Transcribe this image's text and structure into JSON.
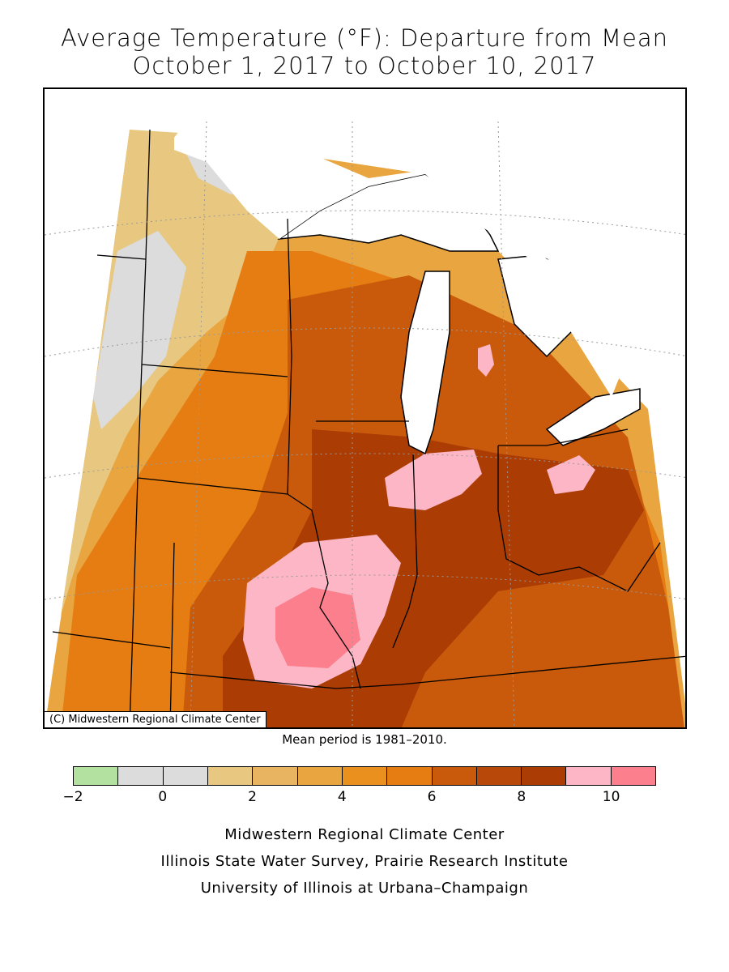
{
  "title": {
    "line1": "Average Temperature (°F): Departure from Mean",
    "line2": "October 1, 2017 to October 10, 2017"
  },
  "map": {
    "credit": "(C) Midwestern Regional Climate Center",
    "mean_note": "Mean period is 1981–2010.",
    "colors": {
      "bin_2_4": "#e9a540",
      "bin_4_6": "#e57d12",
      "bin_6_8": "#c95a0b",
      "bin_8_9": "#aa3c04",
      "bin_9_10": "#fdb6c6",
      "bin_10_11": "#fb7f8c",
      "bin_1_2": "#e8c880",
      "bin_neg": "#dcdcdc",
      "lake": "#ffffff"
    }
  },
  "legend": {
    "colors": [
      "#b2e1a0",
      "#dcdcdc",
      "#dcdcdc",
      "#e8c880",
      "#e9b461",
      "#e9a540",
      "#ea901f",
      "#e57d12",
      "#c95a0b",
      "#b8480a",
      "#aa3c04",
      "#fdb6c6",
      "#fb7f8c"
    ],
    "tick_labels": [
      "−2",
      "0",
      "2",
      "4",
      "6",
      "8",
      "10"
    ],
    "tick_values": [
      -2,
      0,
      2,
      4,
      6,
      8,
      10
    ],
    "min": -2,
    "max": 11
  },
  "footer": {
    "line1": "Midwestern Regional Climate Center",
    "line2": "Illinois State Water Survey, Prairie Research Institute",
    "line3": "University of Illinois at Urbana–Champaign"
  }
}
